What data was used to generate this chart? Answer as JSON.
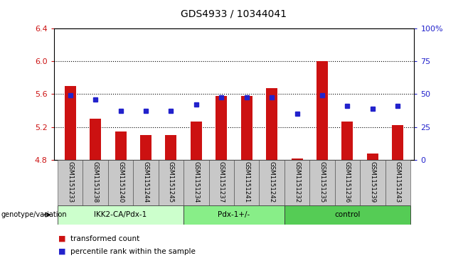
{
  "title": "GDS4933 / 10344041",
  "samples": [
    "GSM1151233",
    "GSM1151238",
    "GSM1151240",
    "GSM1151244",
    "GSM1151245",
    "GSM1151234",
    "GSM1151237",
    "GSM1151241",
    "GSM1151242",
    "GSM1151232",
    "GSM1151235",
    "GSM1151236",
    "GSM1151239",
    "GSM1151243"
  ],
  "red_values": [
    5.7,
    5.3,
    5.15,
    5.1,
    5.1,
    5.27,
    5.58,
    5.58,
    5.67,
    4.82,
    6.0,
    5.27,
    4.88,
    5.22
  ],
  "blue_values": [
    5.585,
    5.535,
    5.4,
    5.4,
    5.4,
    5.475,
    5.565,
    5.56,
    5.565,
    5.365,
    5.59,
    5.455,
    5.42,
    5.455
  ],
  "ylim_left": [
    4.8,
    6.4
  ],
  "ylim_right": [
    0,
    100
  ],
  "yticks_left": [
    4.8,
    5.2,
    5.6,
    6.0,
    6.4
  ],
  "yticks_right": [
    0,
    25,
    50,
    75,
    100
  ],
  "ytick_labels_right": [
    "0",
    "25",
    "50",
    "75",
    "100%"
  ],
  "groups": [
    {
      "label": "IKK2-CA/Pdx-1",
      "start": 0,
      "end": 5,
      "color": "#ccffcc"
    },
    {
      "label": "Pdx-1+/-",
      "start": 5,
      "end": 9,
      "color": "#88ee88"
    },
    {
      "label": "control",
      "start": 9,
      "end": 14,
      "color": "#55cc55"
    }
  ],
  "bar_color": "#cc1111",
  "dot_color": "#2222cc",
  "bar_bottom": 4.8,
  "legend_items": [
    {
      "color": "#cc1111",
      "label": "transformed count"
    },
    {
      "color": "#2222cc",
      "label": "percentile rank within the sample"
    }
  ],
  "group_row_label": "genotype/variation",
  "tick_area_bg": "#c8c8c8",
  "title_fontsize": 10,
  "tick_fontsize": 8,
  "bar_width": 0.45
}
